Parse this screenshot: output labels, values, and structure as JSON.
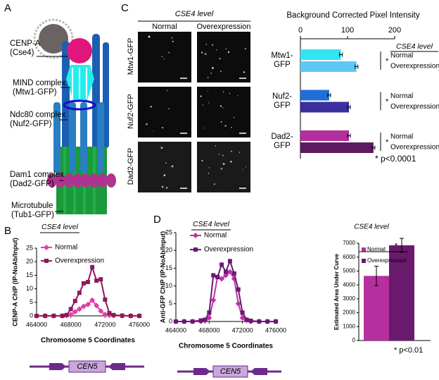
{
  "panel_labels": [
    "A",
    "B",
    "C",
    "D"
  ],
  "diagram": {
    "labels": [
      "CENP-A (Cse4)",
      "MIND complex (Mtw1-GFP)",
      "Ndc80 complex (Nuf2-GFP)",
      "Dam1 complex (Dad2-GFP)",
      "Microtubule (Tub1-GFP)"
    ]
  },
  "microscopy": {
    "header": "CSE4 level",
    "columns": [
      "Normal",
      "Overexpression"
    ],
    "rows": [
      "Mtw1-GFP",
      "Nuf2-GFP",
      "Dad2-GFP"
    ]
  },
  "chart_data": [
    {
      "type": "bar",
      "orientation": "horizontal",
      "title": "Background Corrected Pixel Intensity",
      "categories": [
        "Mtw1-GFP",
        "Nuf2-GFP",
        "Dad2-GFP"
      ],
      "series": [
        {
          "name": "Normal",
          "colors": [
            "#33e4f2",
            "#1f6fd8",
            "#b2309c"
          ],
          "values": [
            86,
            61,
            103
          ],
          "errors": [
            3,
            3,
            3
          ]
        },
        {
          "name": "Overexpression",
          "colors": [
            "#5cc8f6",
            "#3a2f9e",
            "#5e1a5e"
          ],
          "values": [
            119,
            103,
            155
          ],
          "errors": [
            3,
            3,
            3
          ]
        }
      ],
      "xlim": [
        0,
        200
      ],
      "xticks": [
        0,
        100,
        200
      ],
      "legend_title": "CSE4 level",
      "significance": "*",
      "note": "* p<0.0001"
    },
    {
      "type": "line",
      "y_label": "CENP-A ChIP (IP-NoAb/Input)",
      "x_label": "Chromosome 5 Coordinates",
      "x": [
        464000,
        465000,
        466000,
        467000,
        467500,
        468000,
        468500,
        469000,
        469500,
        470000,
        470500,
        471000,
        471500,
        472000,
        472500,
        473000,
        474000,
        475000,
        476000
      ],
      "series": [
        {
          "name": "Normal",
          "color": "#e43da3",
          "marker": "diamond",
          "values": [
            0,
            0,
            0,
            0,
            0.2,
            0.5,
            1.5,
            2.5,
            3.5,
            4.2,
            5.8,
            3.8,
            1.8,
            0.5,
            0.2,
            0.1,
            0,
            0,
            0
          ]
        },
        {
          "name": "Overexpression",
          "color": "#8c1a5c",
          "marker": "square",
          "values": [
            0,
            0,
            0,
            0,
            0.3,
            2.5,
            5.5,
            8.5,
            12,
            12.5,
            18,
            13,
            13.5,
            6,
            1,
            0.3,
            0.1,
            0,
            0
          ]
        }
      ],
      "xlim": [
        464000,
        476000
      ],
      "xticks": [
        464000,
        468000,
        472000,
        476000
      ],
      "ylim": [
        0,
        25
      ],
      "yticks": [
        0,
        5,
        10,
        15,
        20,
        25
      ],
      "legend_title": "CSE4 level",
      "annotation": "CEN5"
    },
    {
      "type": "line",
      "y_label": "Anti-GFP ChIP (IP-NoAb/Input)",
      "x_label": "Chromosome 5 Coordinates",
      "x": [
        464000,
        465000,
        466000,
        467000,
        467500,
        468000,
        468500,
        469000,
        469500,
        470000,
        470500,
        471000,
        471500,
        472000,
        472500,
        473000,
        474000,
        475000,
        476000
      ],
      "series": [
        {
          "name": "Normal",
          "color": "#c42fa8",
          "marker": "diamond",
          "values": [
            0,
            0,
            0,
            0,
            0.2,
            1,
            6,
            12.5,
            12,
            13,
            14,
            12,
            5,
            1,
            0.3,
            0,
            0,
            0,
            0
          ]
        },
        {
          "name": "Overexpression",
          "color": "#6a1a72",
          "marker": "square",
          "values": [
            0,
            0,
            0,
            0.3,
            0.5,
            2.5,
            13,
            12.5,
            16,
            14,
            17,
            13.5,
            9,
            2.5,
            0.5,
            0.2,
            0,
            0,
            0
          ]
        }
      ],
      "xlim": [
        464000,
        476000
      ],
      "xticks": [
        464000,
        468000,
        472000,
        476000
      ],
      "ylim": [
        0,
        25
      ],
      "yticks": [
        0,
        5,
        10,
        15,
        20,
        25
      ],
      "legend_title": "CSE4 level",
      "annotation": "CEN5"
    },
    {
      "type": "bar",
      "orientation": "vertical",
      "y_label": "Estimated Area Under Curve",
      "series": [
        {
          "name": "Normal",
          "color": "#b52f9e",
          "values": [
            4650
          ],
          "errors": [
            700
          ]
        },
        {
          "name": "Overexpression",
          "color": "#6a1a6c",
          "values": [
            6850
          ],
          "errors": [
            500
          ]
        }
      ],
      "ylim": [
        0,
        7000
      ],
      "yticks": [
        0,
        1000,
        2000,
        3000,
        4000,
        5000,
        6000,
        7000
      ],
      "legend_title": "CSE4 level",
      "significance": "*",
      "note": "* p<0.01"
    }
  ]
}
